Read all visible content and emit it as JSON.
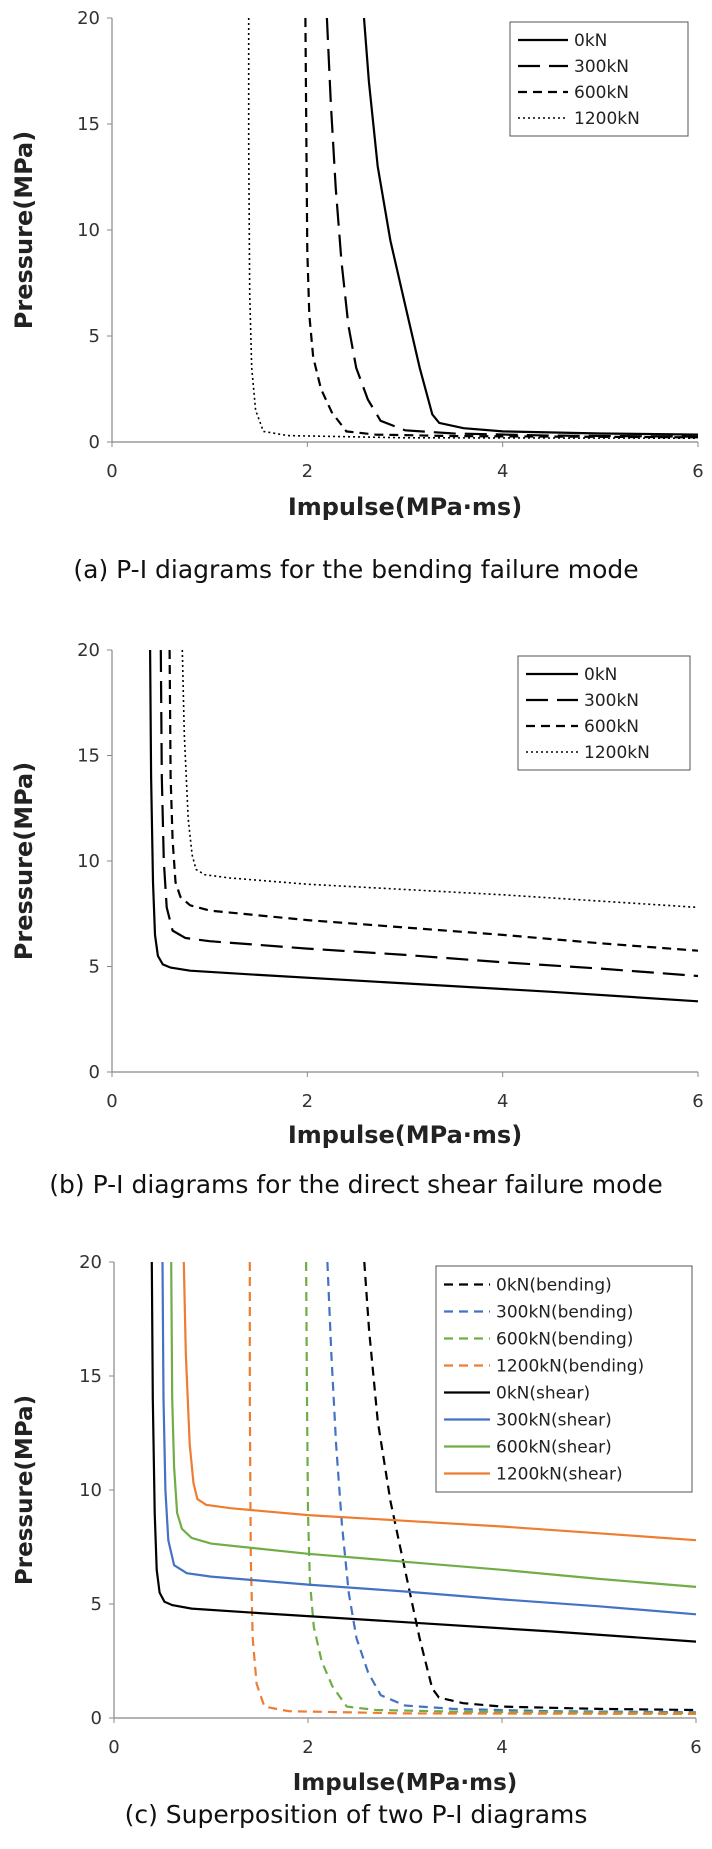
{
  "chart_data": [
    {
      "id": "a",
      "type": "line",
      "caption": "(a) P-I diagrams for the bending failure mode",
      "xlabel": "Impulse(MPa·ms)",
      "ylabel": "Pressure(MPa)",
      "xlim": [
        0,
        6
      ],
      "ylim": [
        0,
        20
      ],
      "xticks": [
        0,
        2,
        4,
        6
      ],
      "yticks": [
        0,
        5,
        10,
        15,
        20
      ],
      "grid": false,
      "legend_position": "top-right",
      "series": [
        {
          "name": "0kN",
          "color": "#000000",
          "dash": "solid",
          "x": [
            2.58,
            2.63,
            2.72,
            2.85,
            3.0,
            3.15,
            3.28,
            3.35,
            3.6,
            4.0,
            5.0,
            6.0
          ],
          "y": [
            20,
            17,
            13,
            9.5,
            6.5,
            3.5,
            1.3,
            0.9,
            0.65,
            0.5,
            0.4,
            0.35
          ]
        },
        {
          "name": "300kN",
          "color": "#000000",
          "dash": "long",
          "x": [
            2.2,
            2.24,
            2.29,
            2.35,
            2.42,
            2.5,
            2.62,
            2.75,
            3.0,
            3.5,
            4.5,
            6.0
          ],
          "y": [
            20,
            16,
            12,
            8.5,
            5.5,
            3.5,
            2.0,
            1.0,
            0.55,
            0.4,
            0.3,
            0.25
          ]
        },
        {
          "name": "600kN",
          "color": "#000000",
          "dash": "short",
          "x": [
            1.98,
            1.99,
            2.0,
            2.02,
            2.06,
            2.14,
            2.25,
            2.4,
            2.7,
            3.5,
            6.0
          ],
          "y": [
            20,
            14,
            9,
            6.0,
            4.0,
            2.5,
            1.4,
            0.5,
            0.35,
            0.28,
            0.22
          ]
        },
        {
          "name": "1200kN",
          "color": "#000000",
          "dash": "dotted",
          "x": [
            1.4,
            1.4,
            1.41,
            1.43,
            1.47,
            1.55,
            1.8,
            3.0,
            6.0
          ],
          "y": [
            20,
            14,
            7,
            3.5,
            1.5,
            0.5,
            0.3,
            0.2,
            0.18
          ]
        }
      ]
    },
    {
      "id": "b",
      "type": "line",
      "caption": "(b) P-I diagrams for the direct shear failure mode",
      "xlabel": "Impulse(MPa·ms)",
      "ylabel": "Pressure(MPa)",
      "xlim": [
        0,
        6
      ],
      "ylim": [
        0,
        20
      ],
      "xticks": [
        0,
        2,
        4,
        6
      ],
      "yticks": [
        0,
        5,
        10,
        15,
        20
      ],
      "grid": false,
      "legend_position": "top-right",
      "series": [
        {
          "name": "0kN",
          "color": "#000000",
          "dash": "solid",
          "x": [
            0.39,
            0.4,
            0.42,
            0.44,
            0.47,
            0.52,
            0.6,
            0.8,
            1.5,
            3.0,
            4.5,
            6.0
          ],
          "y": [
            20,
            14,
            9,
            6.5,
            5.5,
            5.1,
            4.95,
            4.8,
            4.6,
            4.2,
            3.8,
            3.35
          ]
        },
        {
          "name": "300kN",
          "color": "#000000",
          "dash": "long",
          "x": [
            0.5,
            0.51,
            0.53,
            0.56,
            0.62,
            0.75,
            1.0,
            2.0,
            3.0,
            4.0,
            5.0,
            6.0
          ],
          "y": [
            20,
            14,
            10,
            7.8,
            6.7,
            6.35,
            6.2,
            5.85,
            5.55,
            5.2,
            4.9,
            4.55
          ]
        },
        {
          "name": "600kN",
          "color": "#000000",
          "dash": "short",
          "x": [
            0.59,
            0.6,
            0.62,
            0.65,
            0.7,
            0.8,
            1.0,
            2.0,
            3.0,
            4.0,
            5.0,
            6.0
          ],
          "y": [
            20,
            14,
            11,
            9.0,
            8.3,
            7.9,
            7.65,
            7.2,
            6.85,
            6.5,
            6.1,
            5.75
          ]
        },
        {
          "name": "1200kN",
          "color": "#000000",
          "dash": "dotted",
          "x": [
            0.72,
            0.74,
            0.78,
            0.82,
            0.86,
            0.95,
            1.2,
            2.0,
            3.0,
            4.0,
            5.0,
            6.0
          ],
          "y": [
            20,
            16,
            12,
            10.3,
            9.6,
            9.35,
            9.2,
            8.9,
            8.65,
            8.4,
            8.1,
            7.8
          ]
        }
      ]
    },
    {
      "id": "c",
      "type": "line",
      "caption": "(c) Superposition of two P-I diagrams",
      "xlabel": "Impulse(MPa·ms)",
      "ylabel": "Pressure(MPa)",
      "xlim": [
        0,
        6
      ],
      "ylim": [
        0,
        20
      ],
      "xticks": [
        0,
        2,
        4,
        6
      ],
      "yticks": [
        0,
        5,
        10,
        15,
        20
      ],
      "grid": false,
      "legend_position": "top-right",
      "series": [
        {
          "name": "0kN(bending)",
          "color": "#000000",
          "dash": "short",
          "x": [
            2.58,
            2.63,
            2.72,
            2.85,
            3.0,
            3.15,
            3.28,
            3.35,
            3.6,
            4.0,
            5.0,
            6.0
          ],
          "y": [
            20,
            17,
            13,
            9.5,
            6.5,
            3.5,
            1.3,
            0.9,
            0.65,
            0.5,
            0.4,
            0.35
          ]
        },
        {
          "name": "300kN(bending)",
          "color": "#4472c4",
          "dash": "short",
          "x": [
            2.2,
            2.24,
            2.29,
            2.35,
            2.42,
            2.5,
            2.62,
            2.75,
            3.0,
            3.5,
            4.5,
            6.0
          ],
          "y": [
            20,
            16,
            12,
            8.5,
            5.5,
            3.5,
            2.0,
            1.0,
            0.55,
            0.4,
            0.3,
            0.25
          ]
        },
        {
          "name": "600kN(bending)",
          "color": "#70ad47",
          "dash": "short",
          "x": [
            1.98,
            1.99,
            2.0,
            2.02,
            2.06,
            2.14,
            2.25,
            2.4,
            2.7,
            3.5,
            6.0
          ],
          "y": [
            20,
            14,
            9,
            6.0,
            4.0,
            2.5,
            1.4,
            0.5,
            0.35,
            0.28,
            0.22
          ]
        },
        {
          "name": "1200kN(bending)",
          "color": "#ed7d31",
          "dash": "short",
          "x": [
            1.4,
            1.4,
            1.41,
            1.43,
            1.47,
            1.55,
            1.8,
            3.0,
            6.0
          ],
          "y": [
            20,
            14,
            7,
            3.5,
            1.5,
            0.5,
            0.3,
            0.2,
            0.18
          ]
        },
        {
          "name": "0kN(shear)",
          "color": "#000000",
          "dash": "solid",
          "x": [
            0.39,
            0.4,
            0.42,
            0.44,
            0.47,
            0.52,
            0.6,
            0.8,
            1.5,
            3.0,
            4.5,
            6.0
          ],
          "y": [
            20,
            14,
            9,
            6.5,
            5.5,
            5.1,
            4.95,
            4.8,
            4.6,
            4.2,
            3.8,
            3.35
          ]
        },
        {
          "name": "300kN(shear)",
          "color": "#4472c4",
          "dash": "solid",
          "x": [
            0.5,
            0.51,
            0.53,
            0.56,
            0.62,
            0.75,
            1.0,
            2.0,
            3.0,
            4.0,
            5.0,
            6.0
          ],
          "y": [
            20,
            14,
            10,
            7.8,
            6.7,
            6.35,
            6.2,
            5.85,
            5.55,
            5.2,
            4.9,
            4.55
          ]
        },
        {
          "name": "600kN(shear)",
          "color": "#70ad47",
          "dash": "solid",
          "x": [
            0.59,
            0.6,
            0.62,
            0.65,
            0.7,
            0.8,
            1.0,
            2.0,
            3.0,
            4.0,
            5.0,
            6.0
          ],
          "y": [
            20,
            14,
            11,
            9.0,
            8.3,
            7.9,
            7.65,
            7.2,
            6.85,
            6.5,
            6.1,
            5.75
          ]
        },
        {
          "name": "1200kN(shear)",
          "color": "#ed7d31",
          "dash": "solid",
          "x": [
            0.72,
            0.74,
            0.78,
            0.82,
            0.86,
            0.95,
            1.2,
            2.0,
            3.0,
            4.0,
            5.0,
            6.0
          ],
          "y": [
            20,
            16,
            12,
            10.3,
            9.6,
            9.35,
            9.2,
            8.9,
            8.65,
            8.4,
            8.1,
            7.8
          ]
        }
      ]
    }
  ]
}
